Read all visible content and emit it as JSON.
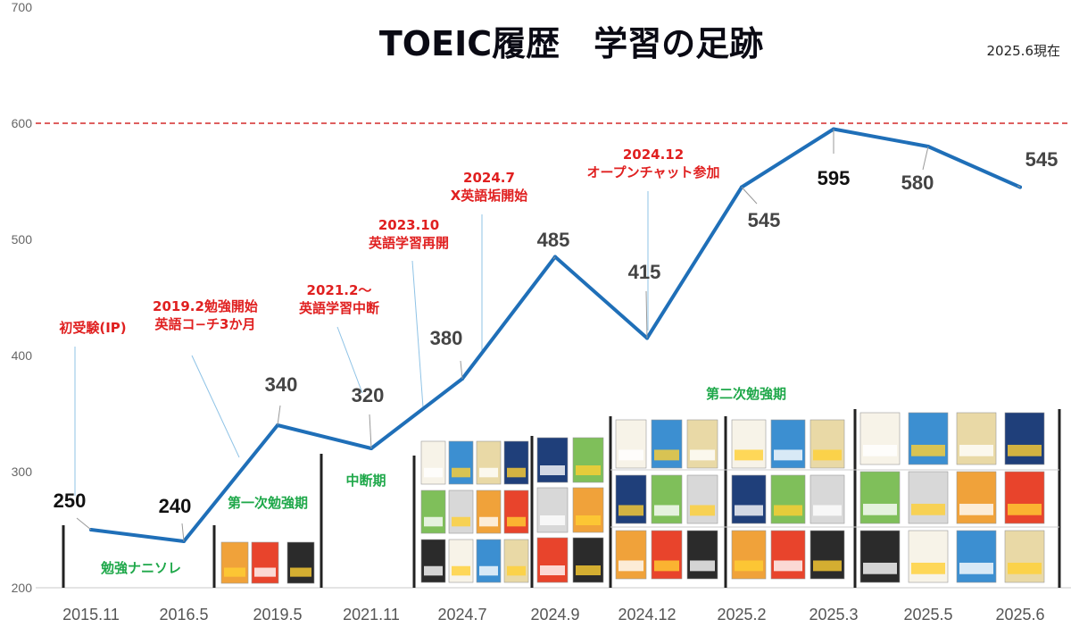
{
  "title": "TOEIC履歴　学習の足跡",
  "date_note": "2025.6現在",
  "colors": {
    "line": "#1f6fb8",
    "target": "#d42a2a",
    "event_text": "#e02020",
    "phase_text": "#1fa84a",
    "callout": "#8fc3e6"
  },
  "chart_data": {
    "type": "line",
    "categories": [
      "2015.11",
      "2016.5",
      "2019.5",
      "2021.11",
      "2024.7",
      "2024.9",
      "2024.12",
      "2025.2",
      "2025.3",
      "2025.5",
      "2025.6"
    ],
    "series": [
      {
        "values": [
          250,
          240,
          340,
          320,
          380,
          485,
          415,
          545,
          595,
          580,
          545
        ]
      }
    ],
    "point_labels": [
      "250",
      "240",
      "340",
      "320",
      "380",
      "485",
      "415",
      "545",
      "595",
      "580",
      "545"
    ],
    "ylim": [
      200,
      700
    ],
    "yticks": [
      "200",
      "300",
      "400",
      "500",
      "600",
      "700"
    ],
    "target_line": 600,
    "grid": false,
    "events": [
      {
        "lines": [
          "初受験(IP)"
        ]
      },
      {
        "lines": [
          "2019.2勉強開始",
          "英語コ−チ3か月"
        ]
      },
      {
        "lines": [
          "2021.2～",
          "英語学習中断"
        ]
      },
      {
        "lines": [
          "2023.10",
          "英語学習再開"
        ]
      },
      {
        "lines": [
          "2024.7",
          "X英語垢開始"
        ]
      },
      {
        "lines": [
          "2024.12",
          "オープンチャット参加"
        ]
      }
    ],
    "phases": [
      "勉強ナニソレ",
      "第一次勉強期",
      "中断期",
      "第二次勉強期"
    ]
  }
}
